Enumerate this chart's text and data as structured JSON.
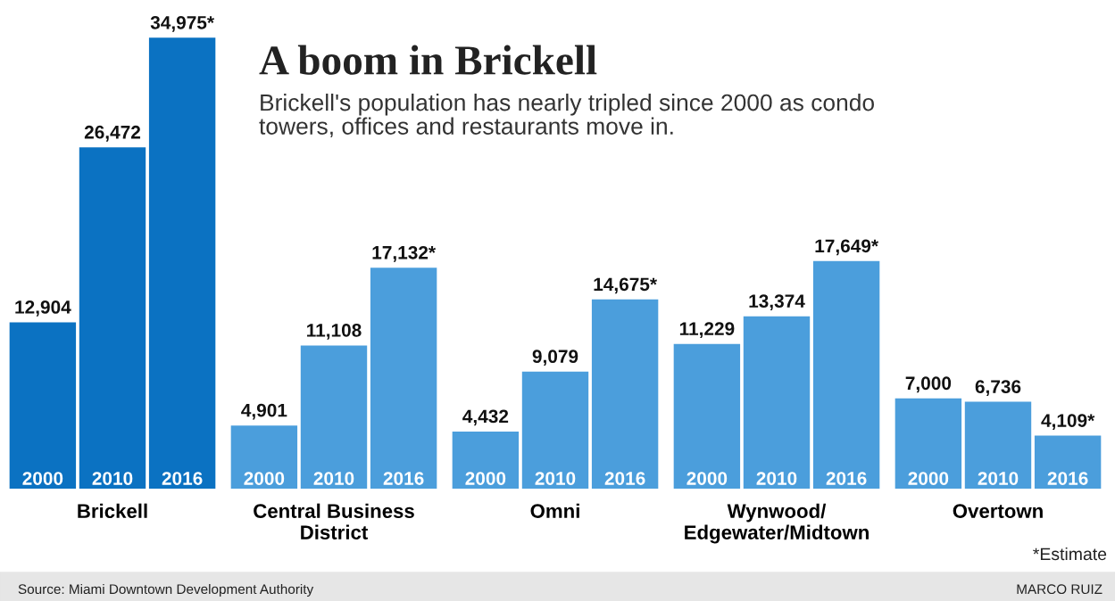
{
  "chart_data": {
    "type": "bar",
    "title": "A boom in Brickell",
    "subtitle": "Brickell's population has nearly tripled since 2000 as condo\ntowers, offices and restaurants move in.",
    "categories": [
      "Brickell",
      "Central Business\nDistrict",
      "Omni",
      "Wynwood/\nEdgewater/Midtown",
      "Overtown"
    ],
    "series": [
      {
        "name": "2000",
        "colors": [
          "#0b72c2",
          "#4b9edc",
          "#4b9edc",
          "#4b9edc",
          "#4b9edc"
        ],
        "values": [
          12904,
          4901,
          4432,
          11229,
          7000
        ],
        "value_labels": [
          "12,904",
          "4,901",
          "4,432",
          "11,229",
          "7,000"
        ]
      },
      {
        "name": "2010",
        "colors": [
          "#0b72c2",
          "#4b9edc",
          "#4b9edc",
          "#4b9edc",
          "#4b9edc"
        ],
        "values": [
          26472,
          11108,
          9079,
          13374,
          6736
        ],
        "value_labels": [
          "26,472",
          "11,108",
          "9,079",
          "13,374",
          "6,736"
        ]
      },
      {
        "name": "2016",
        "colors": [
          "#0b72c2",
          "#4b9edc",
          "#4b9edc",
          "#4b9edc",
          "#4b9edc"
        ],
        "values": [
          34975,
          17132,
          14675,
          17649,
          4109
        ],
        "value_labels": [
          "34,975*",
          "17,132*",
          "14,675*",
          "17,649*",
          "4,109*"
        ]
      }
    ],
    "ylim": [
      0,
      35000
    ],
    "tick_labels": "x",
    "annotations": [
      "*Estimate",
      "Source: Miami Downtown Development Authority",
      "MARCO RUIZ"
    ]
  }
}
